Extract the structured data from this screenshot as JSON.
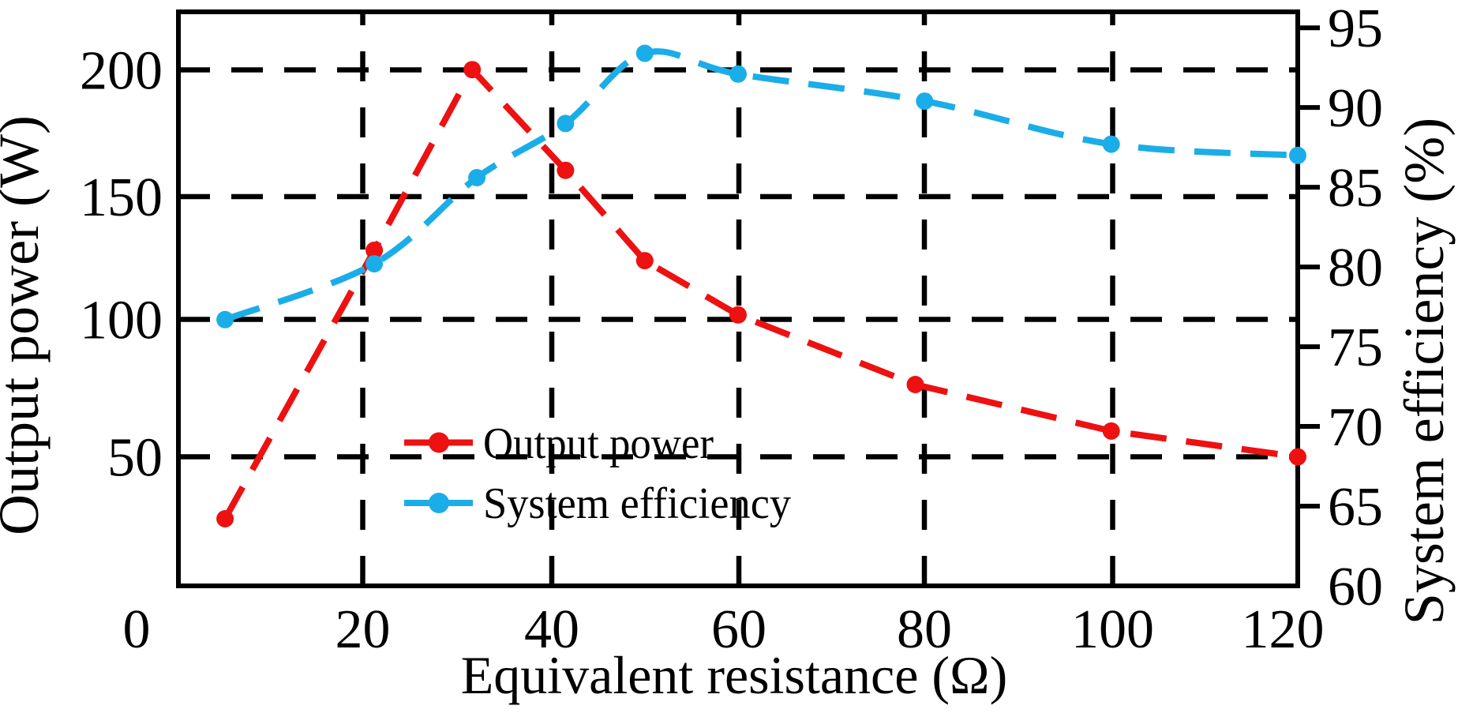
{
  "chart_data": {
    "type": "line",
    "title": "",
    "grid": "dashed",
    "background": "#ffffff",
    "axis_color": "#000000",
    "x_axis": {
      "title": "Equivalent resistance (Ω)",
      "range": [
        0,
        120
      ],
      "tick_values": [
        0,
        20,
        40,
        60,
        80,
        100,
        120
      ],
      "tick_labels": [
        "0",
        "20",
        "40",
        "60",
        "80",
        "100",
        "120"
      ]
    },
    "y_axis_left": {
      "title": "Output power (W)",
      "range": [
        0,
        222.4
      ],
      "tick_values": [
        50,
        100,
        150,
        200
      ],
      "tick_labels": [
        "50",
        "100",
        "150",
        "200"
      ]
    },
    "y_axis_right": {
      "title": "System efficiency (%)",
      "range": [
        60,
        96
      ],
      "tick_values": [
        60,
        65,
        70,
        75,
        80,
        85,
        90,
        95
      ],
      "tick_labels": [
        "60",
        "65",
        "70",
        "75",
        "80",
        "85",
        "90",
        "95"
      ]
    },
    "legend": {
      "position": "inside-center-left",
      "items": [
        {
          "label": "Output power",
          "color": "#ed1111"
        },
        {
          "label": "System efficiency",
          "color": "#1badе8"
        }
      ]
    },
    "series": [
      {
        "id": "output-power",
        "name": "Output power",
        "axis": "left",
        "color": "#ed1111",
        "line_style": "dashed",
        "marker": "circle",
        "smooth": false,
        "points": [
          [
            5,
            26
          ],
          [
            21,
            130
          ],
          [
            31.5,
            200
          ],
          [
            41.5,
            161
          ],
          [
            50,
            126
          ],
          [
            60,
            105
          ],
          [
            79,
            78
          ],
          [
            100,
            60
          ],
          [
            120,
            50
          ]
        ]
      },
      {
        "id": "system-efficiency",
        "name": "System efficiency",
        "axis": "right",
        "color": "#1bade8",
        "line_style": "dashed",
        "marker": "circle",
        "smooth": true,
        "points": [
          [
            5,
            76.7
          ],
          [
            21,
            80.2
          ],
          [
            32,
            85.6
          ],
          [
            41.5,
            89
          ],
          [
            50,
            93.4
          ],
          [
            60,
            92.1
          ],
          [
            80,
            90.4
          ],
          [
            100,
            87.7
          ],
          [
            120,
            87
          ]
        ]
      }
    ]
  }
}
